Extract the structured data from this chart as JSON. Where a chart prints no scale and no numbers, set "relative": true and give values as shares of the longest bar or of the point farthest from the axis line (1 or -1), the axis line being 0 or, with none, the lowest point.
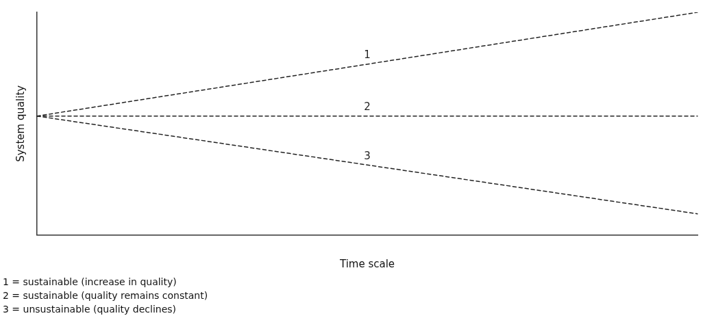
{
  "chart_data": {
    "type": "line",
    "relative": true,
    "xlabel": "Time scale",
    "ylabel": "System quality",
    "categories": [
      null,
      null
    ],
    "series": [
      {
        "name": "1",
        "color": "#222222",
        "values": [
          0.534,
          1
        ]
      },
      {
        "name": "2",
        "color": "#222222",
        "values": [
          0.534,
          0.534
        ]
      },
      {
        "name": "3",
        "color": "#222222",
        "values": [
          0.534,
          0.095
        ]
      }
    ],
    "line_style": "dashed",
    "marker": "none",
    "legend": false,
    "grid": false,
    "annotations": [
      "1 = sustainable (increase in quality)",
      "2 = sustainable (quality remains constant)",
      "3 = unsustainable (quality declines)"
    ]
  }
}
